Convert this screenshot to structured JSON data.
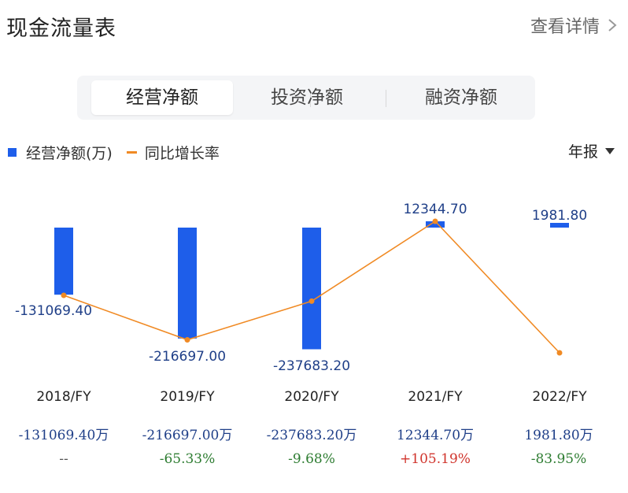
{
  "header": {
    "title": "现金流量表",
    "more_label": "查看详情"
  },
  "tabs": [
    {
      "label": "经营净额",
      "active": true
    },
    {
      "label": "投资净额",
      "active": false
    },
    {
      "label": "融资净额",
      "active": false
    }
  ],
  "legend": {
    "bar_label": "经营净额(万)",
    "line_label": "同比增长率"
  },
  "period_selector": {
    "label": "年报"
  },
  "colors": {
    "bar": "#1e5eea",
    "line": "#f08a24",
    "positive": "#d0342c",
    "negative": "#2e7d32"
  },
  "chart_data": {
    "type": "bar",
    "categories": [
      "2018/FY",
      "2019/FY",
      "2020/FY",
      "2021/FY",
      "2022/FY"
    ],
    "series": [
      {
        "name": "经营净额(万)",
        "type": "bar",
        "values": [
          -131069.4,
          -216697.0,
          -237683.2,
          12344.7,
          1981.8
        ]
      },
      {
        "name": "同比增长率",
        "type": "line",
        "values": [
          null,
          -65.33,
          -9.68,
          105.19,
          -83.95
        ]
      }
    ],
    "bar_labels": [
      "-131069.40",
      "-216697.00",
      "-237683.20",
      "12344.70",
      "1981.80"
    ],
    "legend_position": "top-left",
    "grid": false
  },
  "table": {
    "amount_row": [
      "-131069.40万",
      "-216697.00万",
      "-237683.20万",
      "12344.70万",
      "1981.80万"
    ],
    "growth_row": [
      "--",
      "-65.33%",
      "-9.68%",
      "+105.19%",
      "-83.95%"
    ]
  }
}
